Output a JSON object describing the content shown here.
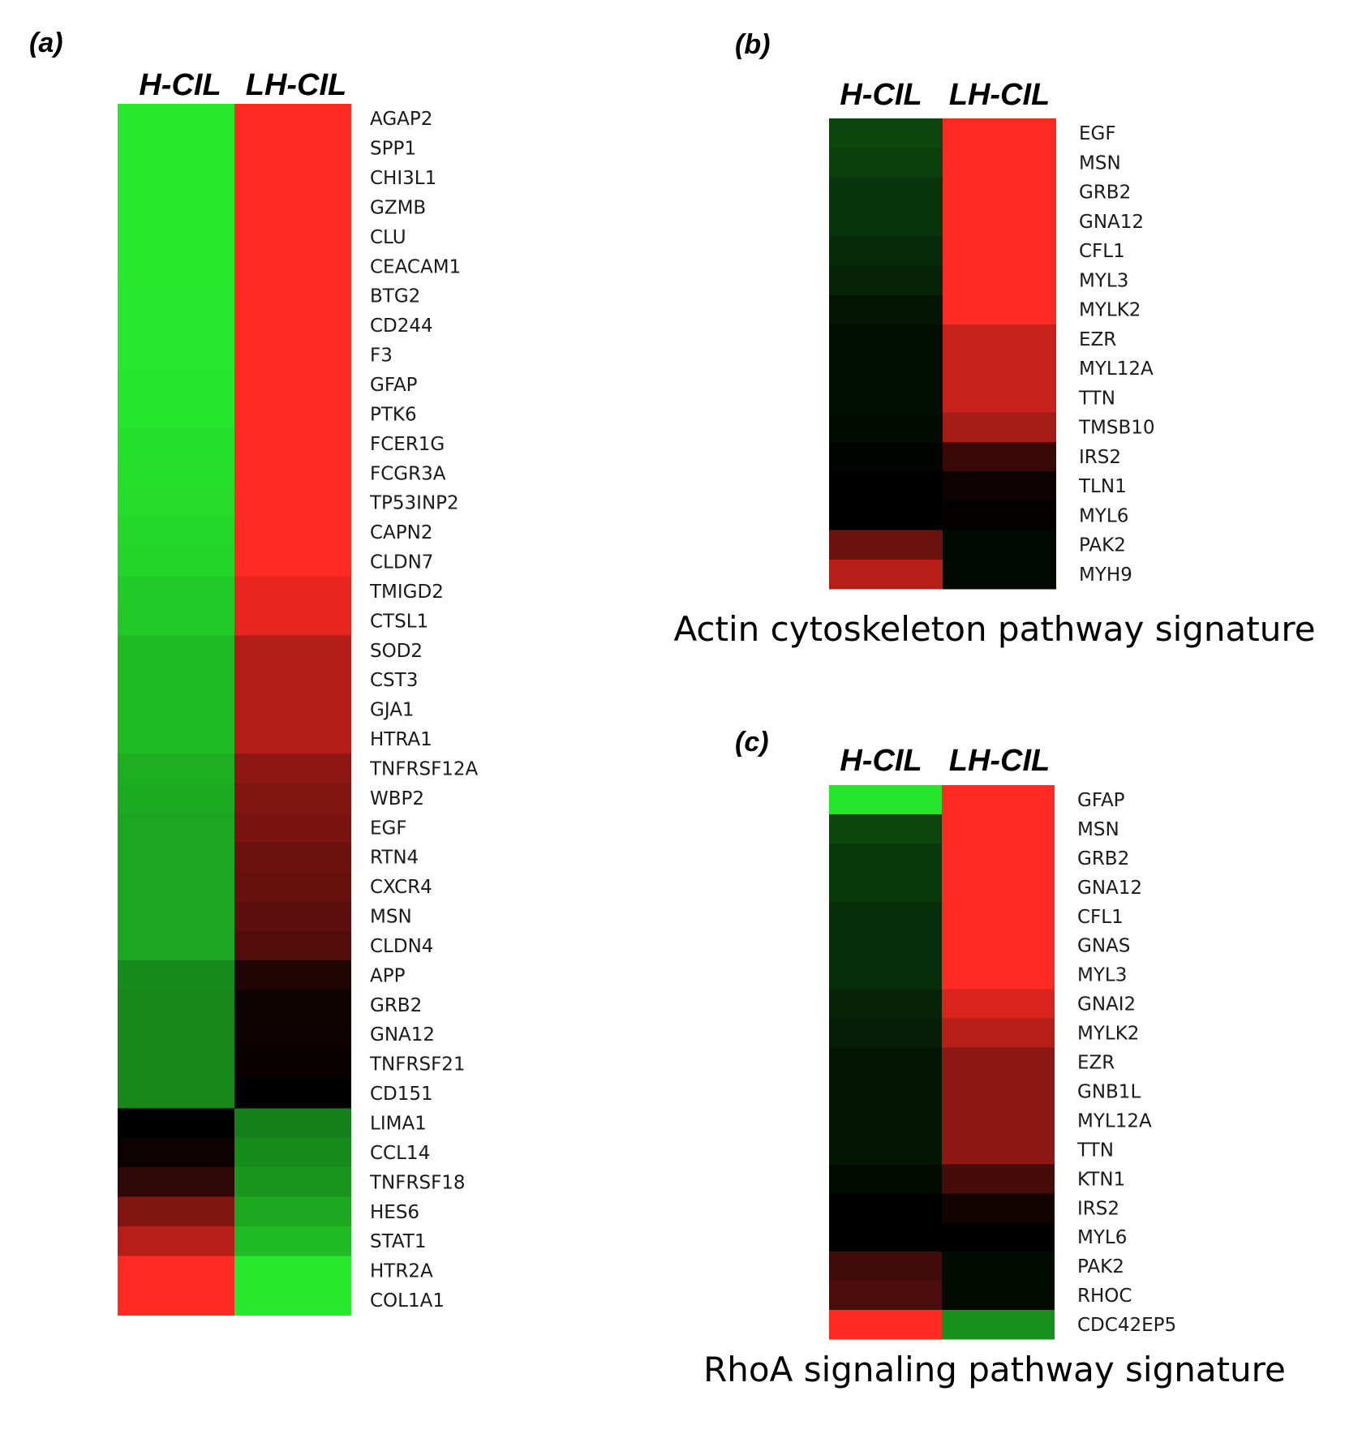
{
  "chart_data": [
    {
      "type": "heatmap",
      "panel_label": "(a)",
      "title": "",
      "columns": [
        "H-CIL",
        "LH-CIL"
      ],
      "rows": [
        "AGAP2",
        "SPP1",
        "CHI3L1",
        "GZMB",
        "CLU",
        "CEACAM1",
        "BTG2",
        "CD244",
        "F3",
        "GFAP",
        "PTK6",
        "FCER1G",
        "FCGR3A",
        "TP53INP2",
        "CAPN2",
        "CLDN7",
        "TMIGD2",
        "CTSL1",
        "SOD2",
        "CST3",
        "GJA1",
        "HTRA1",
        "TNFRSF12A",
        "WBP2",
        "EGF",
        "RTN4",
        "CXCR4",
        "MSN",
        "CLDN4",
        "APP",
        "GRB2",
        "GNA12",
        "TNFRSF21",
        "CD151",
        "LIMA1",
        "CCL14",
        "TNFRSF18",
        "HES6",
        "STAT1",
        "HTR2A",
        "COL1A1"
      ],
      "values": [
        [
          -1.0,
          1.0
        ],
        [
          -1.0,
          1.0
        ],
        [
          -1.0,
          1.0
        ],
        [
          -1.0,
          1.0
        ],
        [
          -1.0,
          1.0
        ],
        [
          -1.0,
          1.0
        ],
        [
          -0.99,
          1.0
        ],
        [
          -0.99,
          1.0
        ],
        [
          -0.99,
          1.0
        ],
        [
          -0.98,
          1.0
        ],
        [
          -0.98,
          1.0
        ],
        [
          -0.97,
          1.0
        ],
        [
          -0.96,
          1.0
        ],
        [
          -0.95,
          1.0
        ],
        [
          -0.93,
          1.0
        ],
        [
          -0.92,
          1.0
        ],
        [
          -0.88,
          0.9
        ],
        [
          -0.87,
          0.9
        ],
        [
          -0.8,
          0.7
        ],
        [
          -0.8,
          0.7
        ],
        [
          -0.8,
          0.7
        ],
        [
          -0.8,
          0.7
        ],
        [
          -0.75,
          0.55
        ],
        [
          -0.74,
          0.5
        ],
        [
          -0.72,
          0.48
        ],
        [
          -0.72,
          0.42
        ],
        [
          -0.72,
          0.4
        ],
        [
          -0.72,
          0.36
        ],
        [
          -0.72,
          0.32
        ],
        [
          -0.6,
          0.12
        ],
        [
          -0.58,
          0.06
        ],
        [
          -0.58,
          0.05
        ],
        [
          -0.58,
          0.03
        ],
        [
          -0.58,
          0.0
        ],
        [
          0.0,
          -0.55
        ],
        [
          0.05,
          -0.6
        ],
        [
          0.18,
          -0.65
        ],
        [
          0.5,
          -0.72
        ],
        [
          0.72,
          -0.8
        ],
        [
          1.0,
          -1.0
        ],
        [
          1.0,
          -1.0
        ]
      ]
    },
    {
      "type": "heatmap",
      "panel_label": "(b)",
      "title": "Actin cytoskeleton pathway signature",
      "columns": [
        "H-CIL",
        "LH-CIL"
      ],
      "rows": [
        "EGF",
        "MSN",
        "GRB2",
        "GNA12",
        "CFL1",
        "MYL3",
        "MYLK2",
        "EZR",
        "MYL12A",
        "TTN",
        "TMSB10",
        "IRS2",
        "TLN1",
        "MYL6",
        "PAK2",
        "MYH9"
      ],
      "values": [
        [
          -0.3,
          1.0
        ],
        [
          -0.27,
          1.0
        ],
        [
          -0.22,
          1.0
        ],
        [
          -0.22,
          1.0
        ],
        [
          -0.18,
          1.0
        ],
        [
          -0.15,
          1.0
        ],
        [
          -0.1,
          1.0
        ],
        [
          -0.06,
          0.78
        ],
        [
          -0.06,
          0.78
        ],
        [
          -0.06,
          0.78
        ],
        [
          -0.05,
          0.65
        ],
        [
          -0.02,
          0.22
        ],
        [
          0.0,
          0.05
        ],
        [
          0.0,
          0.02
        ],
        [
          0.42,
          -0.04
        ],
        [
          0.72,
          -0.04
        ]
      ]
    },
    {
      "type": "heatmap",
      "panel_label": "(c)",
      "title": "RhoA signaling pathway signature",
      "columns": [
        "H-CIL",
        "LH-CIL"
      ],
      "rows": [
        "GFAP",
        "MSN",
        "GRB2",
        "GNA12",
        "CFL1",
        "GNAS",
        "MYL3",
        "GNAI2",
        "MYLK2",
        "EZR",
        "GNB1L",
        "MYL12A",
        "TTN",
        "KTN1",
        "IRS2",
        "MYL6",
        "PAK2",
        "RHOC",
        "CDC42EP5"
      ],
      "values": [
        [
          -0.98,
          1.0
        ],
        [
          -0.3,
          1.0
        ],
        [
          -0.25,
          1.0
        ],
        [
          -0.25,
          1.0
        ],
        [
          -0.2,
          1.0
        ],
        [
          -0.2,
          1.0
        ],
        [
          -0.2,
          1.0
        ],
        [
          -0.15,
          0.85
        ],
        [
          -0.12,
          0.72
        ],
        [
          -0.1,
          0.55
        ],
        [
          -0.1,
          0.55
        ],
        [
          -0.1,
          0.55
        ],
        [
          -0.1,
          0.55
        ],
        [
          -0.05,
          0.28
        ],
        [
          0.0,
          0.08
        ],
        [
          0.0,
          0.0
        ],
        [
          0.25,
          -0.05
        ],
        [
          0.3,
          -0.05
        ],
        [
          1.0,
          -0.62
        ]
      ]
    }
  ],
  "colors": {
    "high": "#ff2a22",
    "low": "#27e82d",
    "mid": "#000000",
    "text": "#000000"
  }
}
